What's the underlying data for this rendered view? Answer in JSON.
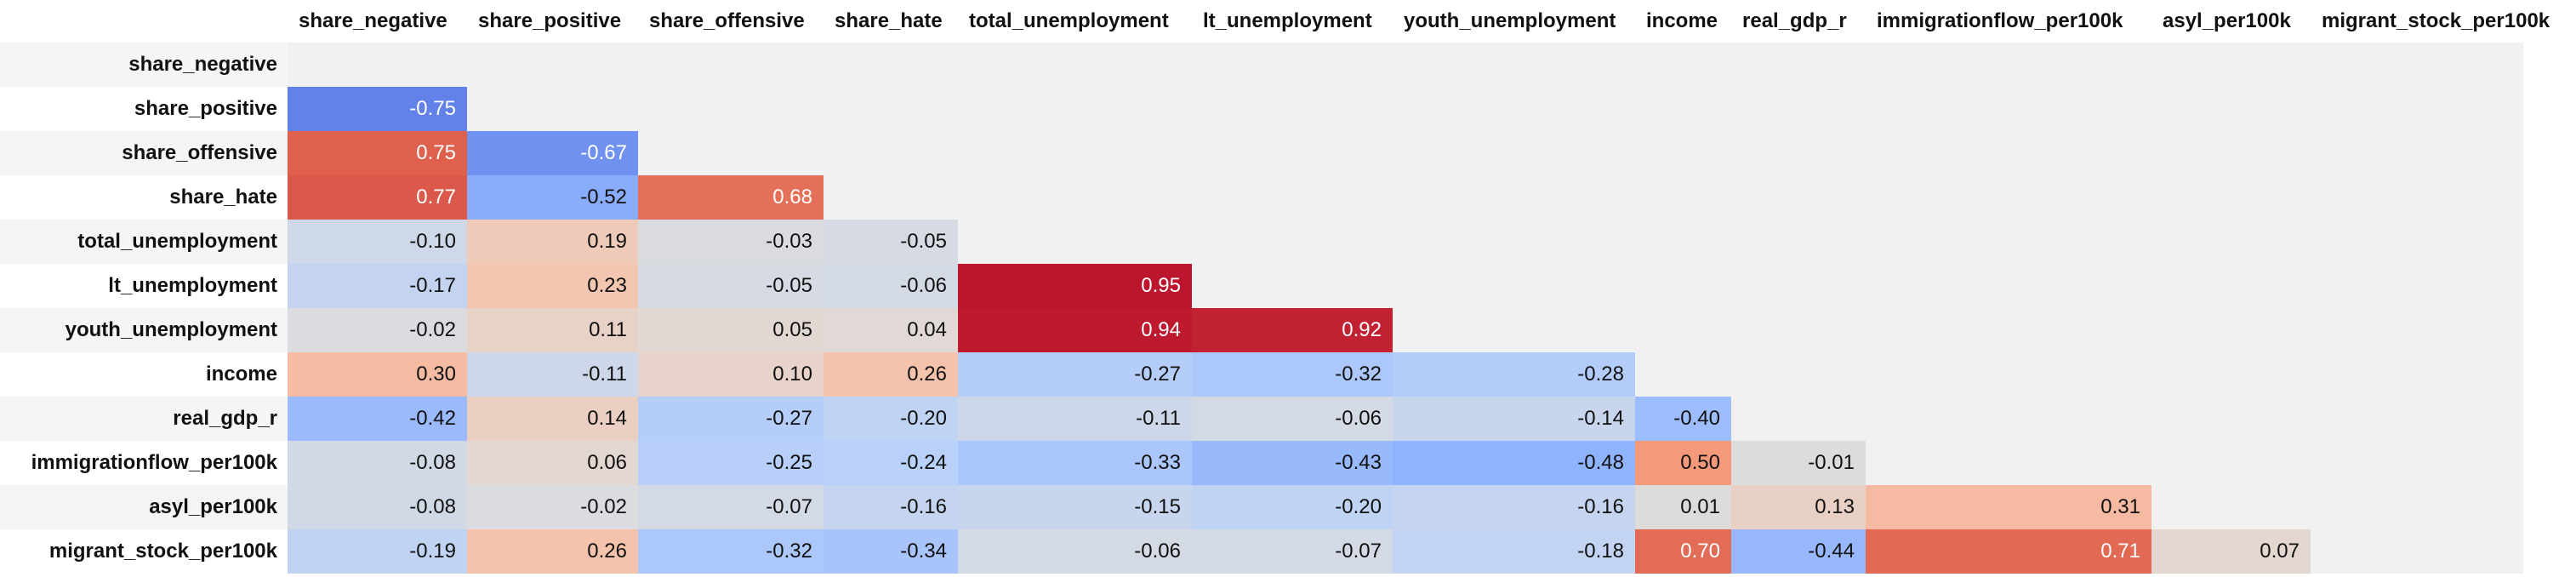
{
  "colors": {
    "scale_low": "#3b4cc0",
    "scale_mid": "#dddddd",
    "scale_high": "#b40426",
    "empty_cell": "#f1f1f1",
    "row_label_highlight": "#e8f4fc"
  },
  "chart_data": {
    "type": "heatmap",
    "colormap": "coolwarm",
    "vmin": -1,
    "vmax": 1,
    "columns": [
      "share_negative",
      "share_positive",
      "share_offensive",
      "share_hate",
      "total_unemployment",
      "lt_unemployment",
      "youth_unemployment",
      "income",
      "real_gdp_r",
      "immigrationflow_per100k",
      "asyl_per100k",
      "migrant_stock_per100k"
    ],
    "rows": [
      "share_negative",
      "share_positive",
      "share_offensive",
      "share_hate",
      "total_unemployment",
      "lt_unemployment",
      "youth_unemployment",
      "income",
      "real_gdp_r",
      "immigrationflow_per100k",
      "asyl_per100k",
      "migrant_stock_per100k"
    ],
    "highlighted_row": "total_unemployment",
    "values": [
      [],
      [
        "-0.75"
      ],
      [
        "0.75",
        "-0.67"
      ],
      [
        "0.77",
        "-0.52",
        "0.68"
      ],
      [
        "-0.10",
        "0.19",
        "-0.03",
        "-0.05"
      ],
      [
        "-0.17",
        "0.23",
        "-0.05",
        "-0.06",
        "0.95"
      ],
      [
        "-0.02",
        "0.11",
        "0.05",
        "0.04",
        "0.94",
        "0.92"
      ],
      [
        "0.30",
        "-0.11",
        "0.10",
        "0.26",
        "-0.27",
        "-0.32",
        "-0.28"
      ],
      [
        "-0.42",
        "0.14",
        "-0.27",
        "-0.20",
        "-0.11",
        "-0.06",
        "-0.14",
        "-0.40"
      ],
      [
        "-0.08",
        "0.06",
        "-0.25",
        "-0.24",
        "-0.33",
        "-0.43",
        "-0.48",
        "0.50",
        "-0.01"
      ],
      [
        "-0.08",
        "-0.02",
        "-0.07",
        "-0.16",
        "-0.15",
        "-0.20",
        "-0.16",
        "0.01",
        "0.13",
        "0.31"
      ],
      [
        "-0.19",
        "0.26",
        "-0.32",
        "-0.34",
        "-0.06",
        "-0.07",
        "-0.18",
        "0.70",
        "-0.44",
        "0.71",
        "0.07"
      ]
    ]
  }
}
